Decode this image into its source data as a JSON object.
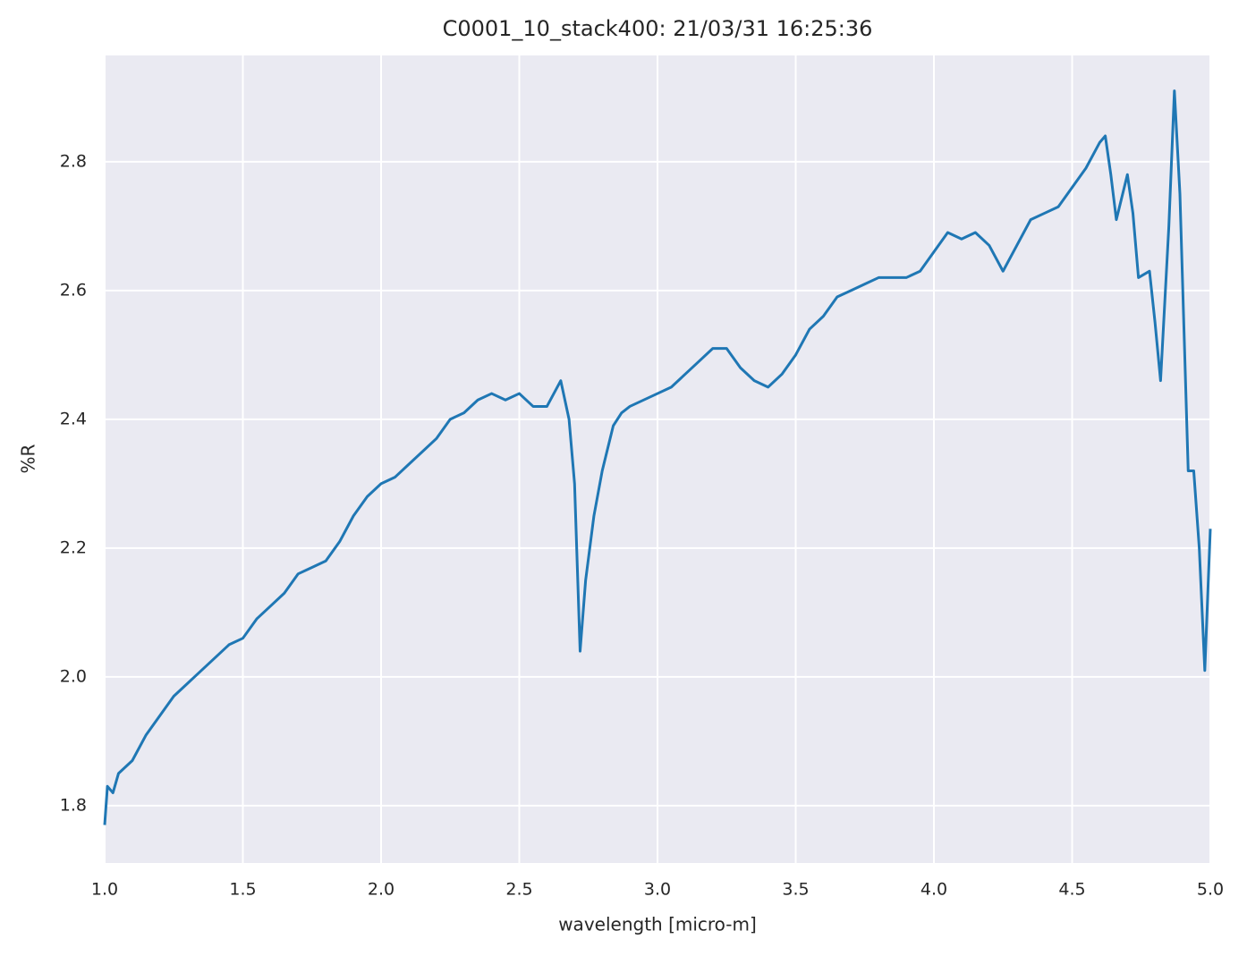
{
  "chart_data": {
    "type": "line",
    "title": "C0001_10_stack400:  21/03/31 16:25:36",
    "xlabel": "wavelength [micro-m]",
    "ylabel": "%R",
    "color": "#1f77b4",
    "grid": true,
    "x": [
      1.0,
      1.01,
      1.03,
      1.05,
      1.1,
      1.15,
      1.2,
      1.25,
      1.3,
      1.35,
      1.4,
      1.45,
      1.5,
      1.55,
      1.6,
      1.65,
      1.7,
      1.75,
      1.8,
      1.85,
      1.9,
      1.95,
      2.0,
      2.05,
      2.1,
      2.15,
      2.2,
      2.25,
      2.3,
      2.35,
      2.4,
      2.45,
      2.5,
      2.55,
      2.6,
      2.65,
      2.68,
      2.7,
      2.72,
      2.74,
      2.77,
      2.8,
      2.84,
      2.87,
      2.9,
      3.0,
      3.05,
      3.1,
      3.15,
      3.2,
      3.25,
      3.3,
      3.35,
      3.4,
      3.45,
      3.5,
      3.55,
      3.6,
      3.65,
      3.7,
      3.75,
      3.8,
      3.85,
      3.9,
      3.95,
      4.0,
      4.05,
      4.1,
      4.15,
      4.2,
      4.25,
      4.3,
      4.35,
      4.4,
      4.45,
      4.5,
      4.55,
      4.6,
      4.62,
      4.64,
      4.66,
      4.7,
      4.72,
      4.74,
      4.78,
      4.8,
      4.82,
      4.85,
      4.87,
      4.89,
      4.92,
      4.94,
      4.96,
      4.98,
      5.0
    ],
    "values": [
      1.77,
      1.83,
      1.82,
      1.85,
      1.87,
      1.91,
      1.94,
      1.97,
      1.99,
      2.01,
      2.03,
      2.05,
      2.06,
      2.09,
      2.11,
      2.13,
      2.16,
      2.17,
      2.18,
      2.21,
      2.25,
      2.28,
      2.3,
      2.31,
      2.33,
      2.35,
      2.37,
      2.4,
      2.41,
      2.43,
      2.44,
      2.43,
      2.44,
      2.42,
      2.42,
      2.46,
      2.4,
      2.3,
      2.04,
      2.15,
      2.25,
      2.32,
      2.39,
      2.41,
      2.42,
      2.44,
      2.45,
      2.47,
      2.49,
      2.51,
      2.51,
      2.48,
      2.46,
      2.45,
      2.47,
      2.5,
      2.54,
      2.56,
      2.59,
      2.6,
      2.61,
      2.62,
      2.62,
      2.62,
      2.63,
      2.66,
      2.69,
      2.68,
      2.69,
      2.67,
      2.63,
      2.67,
      2.71,
      2.72,
      2.73,
      2.76,
      2.79,
      2.83,
      2.84,
      2.78,
      2.71,
      2.78,
      2.72,
      2.62,
      2.63,
      2.55,
      2.46,
      2.7,
      2.91,
      2.75,
      2.32,
      2.32,
      2.2,
      2.01,
      2.23
    ],
    "xlim": [
      1.0,
      5.0
    ],
    "ylim": [
      1.711,
      2.965
    ],
    "xticks": [
      {
        "value": 1,
        "label": "1.0"
      },
      1.5,
      {
        "value": 2,
        "label": "2.0"
      },
      2.5,
      {
        "value": 3,
        "label": "3.0"
      },
      3.5,
      {
        "value": 4,
        "label": "4.0"
      },
      4.5,
      {
        "value": 5,
        "label": "5.0"
      }
    ],
    "yticks": [
      1.8,
      {
        "value": 2,
        "label": "2.0"
      },
      2.2,
      2.4,
      2.6,
      2.8
    ]
  }
}
